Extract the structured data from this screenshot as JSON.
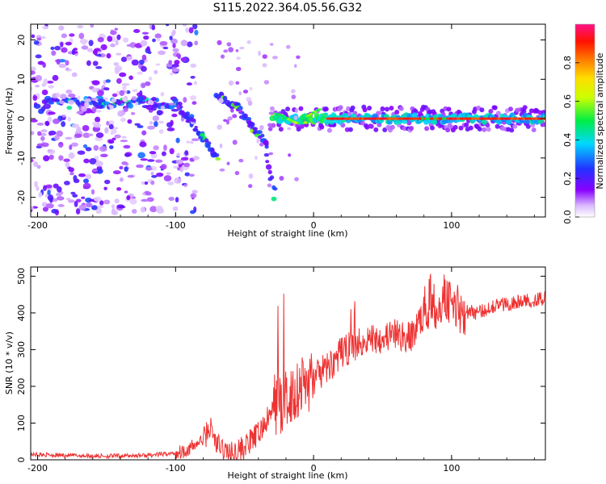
{
  "figure_title": "S115.2022.364.05.56.G32",
  "chart_data": [
    {
      "type": "heatmap",
      "xlabel": "Height of straight line (km)",
      "ylabel": "Frequency (Hz)",
      "xlim": [
        -205,
        168
      ],
      "ylim": [
        -25,
        24
      ],
      "xticks": [
        -200,
        -100,
        0,
        100
      ],
      "yticks": [
        -20,
        -10,
        0,
        10,
        20
      ],
      "colorbar": {
        "label": "Normalized spectral amplitude",
        "range": [
          0,
          1
        ],
        "ticks": [
          "0.0",
          "0.2",
          "0.4",
          "0.6",
          "0.8"
        ],
        "colormap": "rainbow (white → violet → blue → cyan → green → yellow → orange → red → pink)"
      },
      "features": [
        {
          "name": "carrier",
          "x_start": -30,
          "x_end": 168,
          "frequency": 0,
          "amplitude_peak": 0.95
        },
        {
          "name": "band_near_4Hz",
          "x_start": -195,
          "x_end": -100,
          "frequency": 4,
          "amplitude_peak": 0.5
        },
        {
          "name": "descending_branch",
          "points": [
            [
              -100,
              4
            ],
            [
              -90,
              0
            ],
            [
              -80,
              -5
            ],
            [
              -70,
              -10
            ]
          ],
          "amplitude_peak": 0.45
        },
        {
          "name": "ghost_branch",
          "points": [
            [
              -70,
              6
            ],
            [
              -55,
              3
            ],
            [
              -45,
              -2
            ],
            [
              -35,
              -6
            ],
            [
              -28,
              -20
            ]
          ],
          "amplitude_peak": 0.45
        },
        {
          "name": "noise_scatter",
          "x_start": -205,
          "x_end": -85,
          "frequency_range": [
            -24,
            24
          ],
          "amplitude_peak": 0.3
        }
      ]
    },
    {
      "type": "line",
      "xlabel": "Height of straight line (km)",
      "ylabel": "SNR (10 * v/v)",
      "xlim": [
        -205,
        168
      ],
      "ylim": [
        0,
        525
      ],
      "xticks": [
        -200,
        -100,
        0,
        100
      ],
      "yticks": [
        0,
        100,
        200,
        300,
        400,
        500
      ],
      "color": "#ee3333",
      "x": [
        -205,
        -180,
        -150,
        -120,
        -100,
        -90,
        -80,
        -75,
        -70,
        -60,
        -50,
        -40,
        -30,
        -25,
        -22,
        -20,
        -10,
        0,
        10,
        20,
        30,
        40,
        50,
        60,
        70,
        80,
        85,
        90,
        95,
        100,
        105,
        110,
        120,
        130,
        140,
        150,
        160,
        168
      ],
      "y": [
        15,
        12,
        10,
        12,
        18,
        30,
        55,
        90,
        40,
        15,
        35,
        70,
        130,
        180,
        120,
        160,
        200,
        220,
        250,
        290,
        315,
        330,
        335,
        340,
        330,
        400,
        440,
        420,
        460,
        430,
        415,
        405,
        400,
        420,
        425,
        430,
        435,
        440
      ]
    }
  ]
}
